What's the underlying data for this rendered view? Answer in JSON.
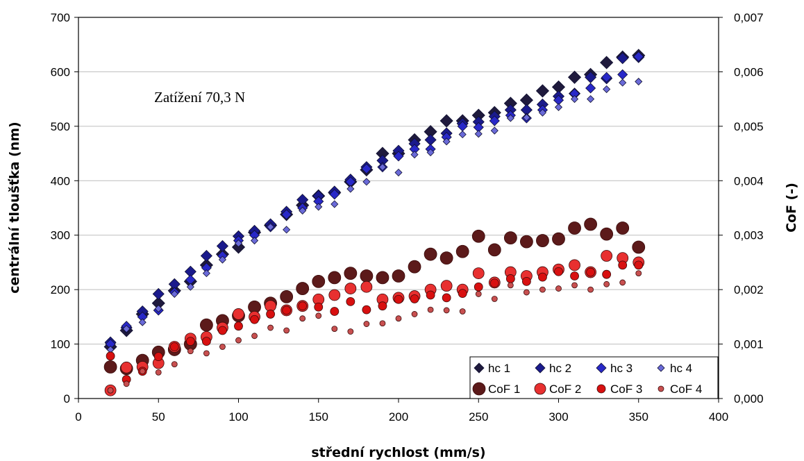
{
  "chart_data": {
    "type": "scatter",
    "xlabel": "střední rychlost (mm/s)",
    "ylabel": "centrální tloušťka (nm)",
    "y2label": "CoF (-)",
    "annotation": "Zatížení 70,3 N",
    "xlim": [
      0,
      400
    ],
    "ylim": [
      0,
      700
    ],
    "y2lim": [
      0,
      0.007
    ],
    "xticks": [
      "0",
      "50",
      "100",
      "150",
      "200",
      "250",
      "300",
      "350",
      "400"
    ],
    "yticks": [
      "0",
      "100",
      "200",
      "300",
      "400",
      "500",
      "600",
      "700"
    ],
    "y2ticks": [
      "0,000",
      "0,001",
      "0,002",
      "0,003",
      "0,004",
      "0,005",
      "0,006",
      "0,007"
    ],
    "grid": "horizontal",
    "legend_position": "bottom-right",
    "x": [
      20,
      30,
      40,
      50,
      60,
      70,
      80,
      90,
      100,
      110,
      120,
      130,
      140,
      150,
      160,
      170,
      180,
      190,
      200,
      210,
      220,
      230,
      240,
      250,
      260,
      270,
      280,
      290,
      300,
      310,
      320,
      330,
      340,
      350
    ],
    "series": [
      {
        "name": "hc 1",
        "axis": "left",
        "marker": "diamond",
        "color": "#1f1a3d",
        "size": 9,
        "values": [
          95,
          125,
          155,
          175,
          198,
          215,
          245,
          265,
          278,
          305,
          318,
          338,
          355,
          372,
          378,
          398,
          420,
          450,
          450,
          475,
          490,
          510,
          510,
          520,
          525,
          542,
          548,
          565,
          572,
          590,
          595,
          617,
          627,
          630
        ]
      },
      {
        "name": "hc 2",
        "axis": "left",
        "marker": "diamond",
        "color": "#1a1a8c",
        "size": 8,
        "values": [
          103,
          130,
          160,
          192,
          210,
          233,
          262,
          280,
          298,
          308,
          320,
          343,
          365,
          372,
          380,
          402,
          425,
          437,
          455,
          468,
          475,
          487,
          505,
          508,
          518,
          530,
          530,
          540,
          555,
          560,
          590,
          588,
          625,
          627
        ]
      },
      {
        "name": "hc 3",
        "axis": "left",
        "marker": "diamond",
        "color": "#2828c8",
        "size": 7,
        "values": [
          100,
          133,
          150,
          162,
          195,
          218,
          240,
          262,
          290,
          300,
          315,
          338,
          350,
          362,
          375,
          398,
          422,
          425,
          445,
          458,
          458,
          480,
          500,
          498,
          510,
          520,
          515,
          530,
          548,
          560,
          570,
          590,
          595,
          628
        ]
      },
      {
        "name": "hc 4",
        "axis": "left",
        "marker": "diamond",
        "color": "#6a6ad8",
        "size": 5,
        "values": [
          90,
          128,
          140,
          165,
          192,
          205,
          230,
          255,
          285,
          290,
          315,
          310,
          345,
          352,
          357,
          385,
          398,
          425,
          415,
          448,
          452,
          472,
          485,
          486,
          492,
          515,
          516,
          525,
          535,
          550,
          550,
          568,
          580,
          582
        ]
      },
      {
        "name": "CoF 1",
        "axis": "right",
        "marker": "circle",
        "color": "#5c1a1a",
        "size": 9,
        "values": [
          0.00058,
          0.00055,
          0.0007,
          0.00085,
          0.0009,
          0.001,
          0.00135,
          0.00143,
          0.00152,
          0.00168,
          0.00175,
          0.00187,
          0.00202,
          0.00215,
          0.00222,
          0.0023,
          0.00225,
          0.00222,
          0.00225,
          0.00242,
          0.00265,
          0.00258,
          0.0027,
          0.00298,
          0.00273,
          0.00295,
          0.00288,
          0.0029,
          0.00293,
          0.00313,
          0.0032,
          0.00302,
          0.00313,
          0.00278
        ]
      },
      {
        "name": "CoF 2",
        "axis": "right",
        "marker": "circle",
        "color": "#e83030",
        "size": 8,
        "values": [
          0.00015,
          0.00057,
          0.00058,
          0.00065,
          0.00095,
          0.0011,
          0.00113,
          0.0013,
          0.00155,
          0.0015,
          0.0017,
          0.00162,
          0.0017,
          0.00182,
          0.0019,
          0.00202,
          0.00205,
          0.00182,
          0.00185,
          0.00188,
          0.002,
          0.00207,
          0.002,
          0.0023,
          0.00213,
          0.00232,
          0.00225,
          0.00232,
          0.00237,
          0.00245,
          0.00232,
          0.00262,
          0.00258,
          0.0025
        ]
      },
      {
        "name": "CoF 3",
        "axis": "right",
        "marker": "circle",
        "color": "#d81010",
        "size": 6,
        "values": [
          0.00078,
          0.00035,
          0.0005,
          0.00077,
          0.00095,
          0.00105,
          0.00105,
          0.00125,
          0.00133,
          0.00145,
          0.00155,
          0.00162,
          0.0017,
          0.00168,
          0.0016,
          0.00178,
          0.00163,
          0.0017,
          0.00182,
          0.00183,
          0.0019,
          0.00185,
          0.00193,
          0.00205,
          0.00212,
          0.0022,
          0.00215,
          0.00223,
          0.00233,
          0.00225,
          0.00232,
          0.00228,
          0.00245,
          0.00245
        ]
      },
      {
        "name": "CoF 4",
        "axis": "right",
        "marker": "circle",
        "color": "#c85050",
        "size": 4,
        "values": [
          0.00015,
          0.00027,
          0.0005,
          0.00048,
          0.00063,
          0.00087,
          0.00083,
          0.00095,
          0.00107,
          0.00115,
          0.0013,
          0.00125,
          0.00147,
          0.00152,
          0.00128,
          0.00123,
          0.00137,
          0.00138,
          0.00147,
          0.00155,
          0.00163,
          0.00162,
          0.0016,
          0.00192,
          0.00183,
          0.00208,
          0.00195,
          0.002,
          0.00202,
          0.00208,
          0.002,
          0.0021,
          0.00213,
          0.0023
        ]
      }
    ]
  }
}
